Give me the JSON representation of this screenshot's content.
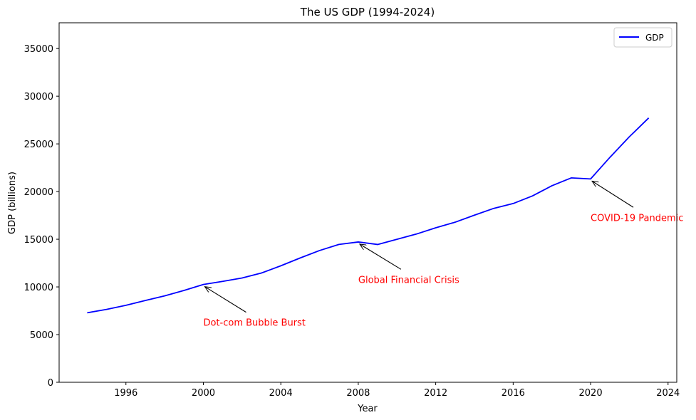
{
  "chart_data": {
    "type": "line",
    "title": "The US GDP (1994-2024)",
    "xlabel": "Year",
    "ylabel": "GDP (billions)",
    "xlim": [
      1992.55,
      2024.45
    ],
    "ylim": [
      0,
      37700
    ],
    "xticks": [
      1996,
      2000,
      2004,
      2008,
      2012,
      2016,
      2020,
      2024
    ],
    "yticks": [
      0,
      5000,
      10000,
      15000,
      20000,
      25000,
      30000,
      35000
    ],
    "grid": false,
    "legend_position": "top-right",
    "series": [
      {
        "name": "GDP",
        "color": "#0000ff",
        "x": [
          1994,
          1995,
          1996,
          1997,
          1998,
          1999,
          2000,
          2001,
          2002,
          2003,
          2004,
          2005,
          2006,
          2007,
          2008,
          2009,
          2010,
          2011,
          2012,
          2013,
          2014,
          2015,
          2016,
          2017,
          2018,
          2019,
          2020,
          2021,
          2022,
          2023
        ],
        "y": [
          7287,
          7640,
          8073,
          8578,
          9063,
          9631,
          10252,
          10582,
          10936,
          11458,
          12214,
          13037,
          13815,
          14452,
          14713,
          14449,
          14992,
          15543,
          16197,
          16785,
          17527,
          18238,
          18745,
          19543,
          20612,
          21433,
          21323,
          23594,
          25744,
          27720
        ]
      }
    ],
    "annotations": [
      {
        "text": "Dot-com Bubble Burst",
        "point": [
          2000,
          10252
        ],
        "text_pos": [
          2000,
          6300
        ],
        "color": "#ff0000"
      },
      {
        "text": "Global Financial Crisis",
        "point": [
          2008,
          14713
        ],
        "text_pos": [
          2008,
          10800
        ],
        "color": "#ff0000"
      },
      {
        "text": "COVID-19 Pandemic",
        "point": [
          2020,
          21323
        ],
        "text_pos": [
          2020,
          17300
        ],
        "color": "#ff0000"
      }
    ]
  }
}
